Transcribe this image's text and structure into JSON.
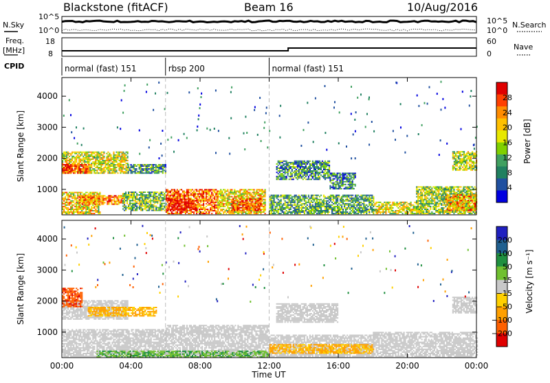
{
  "header": {
    "radar": "Blackstone (fitACF)",
    "beam": "Beam 16",
    "date": "10/Aug/2016"
  },
  "top_panels": {
    "nsky_label": "N.Sky",
    "nsearch_label": "N.Search",
    "freq_label_1": "Freq.",
    "freq_label_2": "[MHz]",
    "nave_label": "Nave",
    "cpid_label": "CPID",
    "noise_ticks_left": [
      "10^5",
      "10^0"
    ],
    "noise_ticks_right": [
      "10^5",
      "10^0"
    ],
    "freq_ticks": [
      "18",
      "8"
    ],
    "nave_ticks": [
      "60",
      "0"
    ]
  },
  "cpid_segments": [
    {
      "label": "normal (fast) 151",
      "start_hr": 0,
      "end_hr": 6
    },
    {
      "label": "rbsp 200",
      "start_hr": 6,
      "end_hr": 12
    },
    {
      "label": "normal (fast) 151",
      "start_hr": 12,
      "end_hr": 24
    }
  ],
  "power_colorbar": {
    "title": "Power [dB]",
    "ticks": [
      "28",
      "24",
      "20",
      "16",
      "12",
      "8",
      "4"
    ],
    "colors": [
      "#e00000",
      "#ff4000",
      "#ff8c00",
      "#ffc000",
      "#e8e800",
      "#80d000",
      "#40a060",
      "#208060",
      "#2050a0",
      "#0000e0"
    ]
  },
  "velocity_colorbar": {
    "title": "Velocity [m s⁻¹]",
    "ticks": [
      "200",
      "100",
      "50",
      "15",
      "−15",
      "−50",
      "−100",
      "−200"
    ],
    "colors": [
      "#2020c0",
      "#206090",
      "#209040",
      "#70c030",
      "#c8c8c8",
      "#ffd000",
      "#ffa000",
      "#ff6000",
      "#e00000"
    ]
  },
  "chart_data": [
    {
      "type": "heatmap",
      "panel": "power",
      "ylabel": "Slant Range [km]",
      "yticks": [
        "4000",
        "3000",
        "2000",
        "1000"
      ],
      "xlim": [
        0,
        24
      ],
      "ylim": [
        180,
        4600
      ],
      "series": [
        {
          "h0": 0.0,
          "h1": 3.8,
          "r0": 1500,
          "r1": 2200,
          "level": 0.55
        },
        {
          "h0": 0.0,
          "h1": 1.6,
          "r0": 1500,
          "r1": 1800,
          "level": 0.9
        },
        {
          "h0": 3.8,
          "h1": 6.0,
          "r0": 1500,
          "r1": 1800,
          "level": 0.3
        },
        {
          "h0": 0.0,
          "h1": 2.2,
          "r0": 200,
          "r1": 900,
          "level": 0.6
        },
        {
          "h0": 1.0,
          "h1": 3.5,
          "r0": 500,
          "r1": 800,
          "level": 0.75
        },
        {
          "h0": 3.5,
          "h1": 6.0,
          "r0": 300,
          "r1": 900,
          "level": 0.4
        },
        {
          "h0": 6.0,
          "h1": 9.0,
          "r0": 200,
          "r1": 1000,
          "level": 0.8
        },
        {
          "h0": 6.1,
          "h1": 7.8,
          "r0": 300,
          "r1": 700,
          "level": 1.0
        },
        {
          "h0": 9.0,
          "h1": 11.8,
          "r0": 200,
          "r1": 1000,
          "level": 0.6
        },
        {
          "h0": 9.8,
          "h1": 11.5,
          "r0": 300,
          "r1": 700,
          "level": 0.85
        },
        {
          "h0": 12.0,
          "h1": 18.0,
          "r0": 200,
          "r1": 800,
          "level": 0.35
        },
        {
          "h0": 12.4,
          "h1": 15.5,
          "r0": 1300,
          "r1": 1900,
          "level": 0.3
        },
        {
          "h0": 15.5,
          "h1": 17.0,
          "r0": 1000,
          "r1": 1500,
          "level": 0.25
        },
        {
          "h0": 18.0,
          "h1": 20.5,
          "r0": 200,
          "r1": 600,
          "level": 0.55
        },
        {
          "h0": 20.5,
          "h1": 24.0,
          "r0": 200,
          "r1": 1100,
          "level": 0.45
        },
        {
          "h0": 22.6,
          "h1": 24.0,
          "r0": 1600,
          "r1": 2200,
          "level": 0.5
        },
        {
          "h0": 22.2,
          "h1": 24.0,
          "r0": 300,
          "r1": 800,
          "level": 0.7
        }
      ]
    },
    {
      "type": "heatmap",
      "panel": "velocity",
      "ylabel": "Slant Range [km]",
      "yticks": [
        "4000",
        "3000",
        "2000",
        "1000"
      ],
      "xticks": [
        "00:00",
        "04:00",
        "08:00",
        "12:00",
        "16:00",
        "20:00",
        "00:00"
      ],
      "xlabel": "Time UT",
      "xlim": [
        0,
        24
      ],
      "ylim": [
        180,
        4600
      ],
      "series": [
        {
          "h0": 0.0,
          "h1": 3.8,
          "r0": 1400,
          "r1": 2000,
          "vel": 0
        },
        {
          "h0": 0.0,
          "h1": 1.2,
          "r0": 1800,
          "r1": 2400,
          "vel": -180
        },
        {
          "h0": 1.5,
          "h1": 5.5,
          "r0": 1500,
          "r1": 1800,
          "vel": -60
        },
        {
          "h0": 0.0,
          "h1": 6.0,
          "r0": 200,
          "r1": 1100,
          "vel": 0
        },
        {
          "h0": 6.0,
          "h1": 12.0,
          "r0": 200,
          "r1": 1200,
          "vel": 0
        },
        {
          "h0": 2.0,
          "h1": 12.0,
          "r0": 180,
          "r1": 400,
          "vel": 40
        },
        {
          "h0": 12.0,
          "h1": 18.0,
          "r0": 200,
          "r1": 900,
          "vel": 0
        },
        {
          "h0": 12.4,
          "h1": 16.0,
          "r0": 1300,
          "r1": 1900,
          "vel": 0
        },
        {
          "h0": 12.0,
          "h1": 18.0,
          "r0": 300,
          "r1": 600,
          "vel": -60
        },
        {
          "h0": 18.0,
          "h1": 24.0,
          "r0": 200,
          "r1": 1000,
          "vel": 0
        },
        {
          "h0": 22.6,
          "h1": 24.0,
          "r0": 1600,
          "r1": 2100,
          "vel": 0
        }
      ]
    }
  ]
}
